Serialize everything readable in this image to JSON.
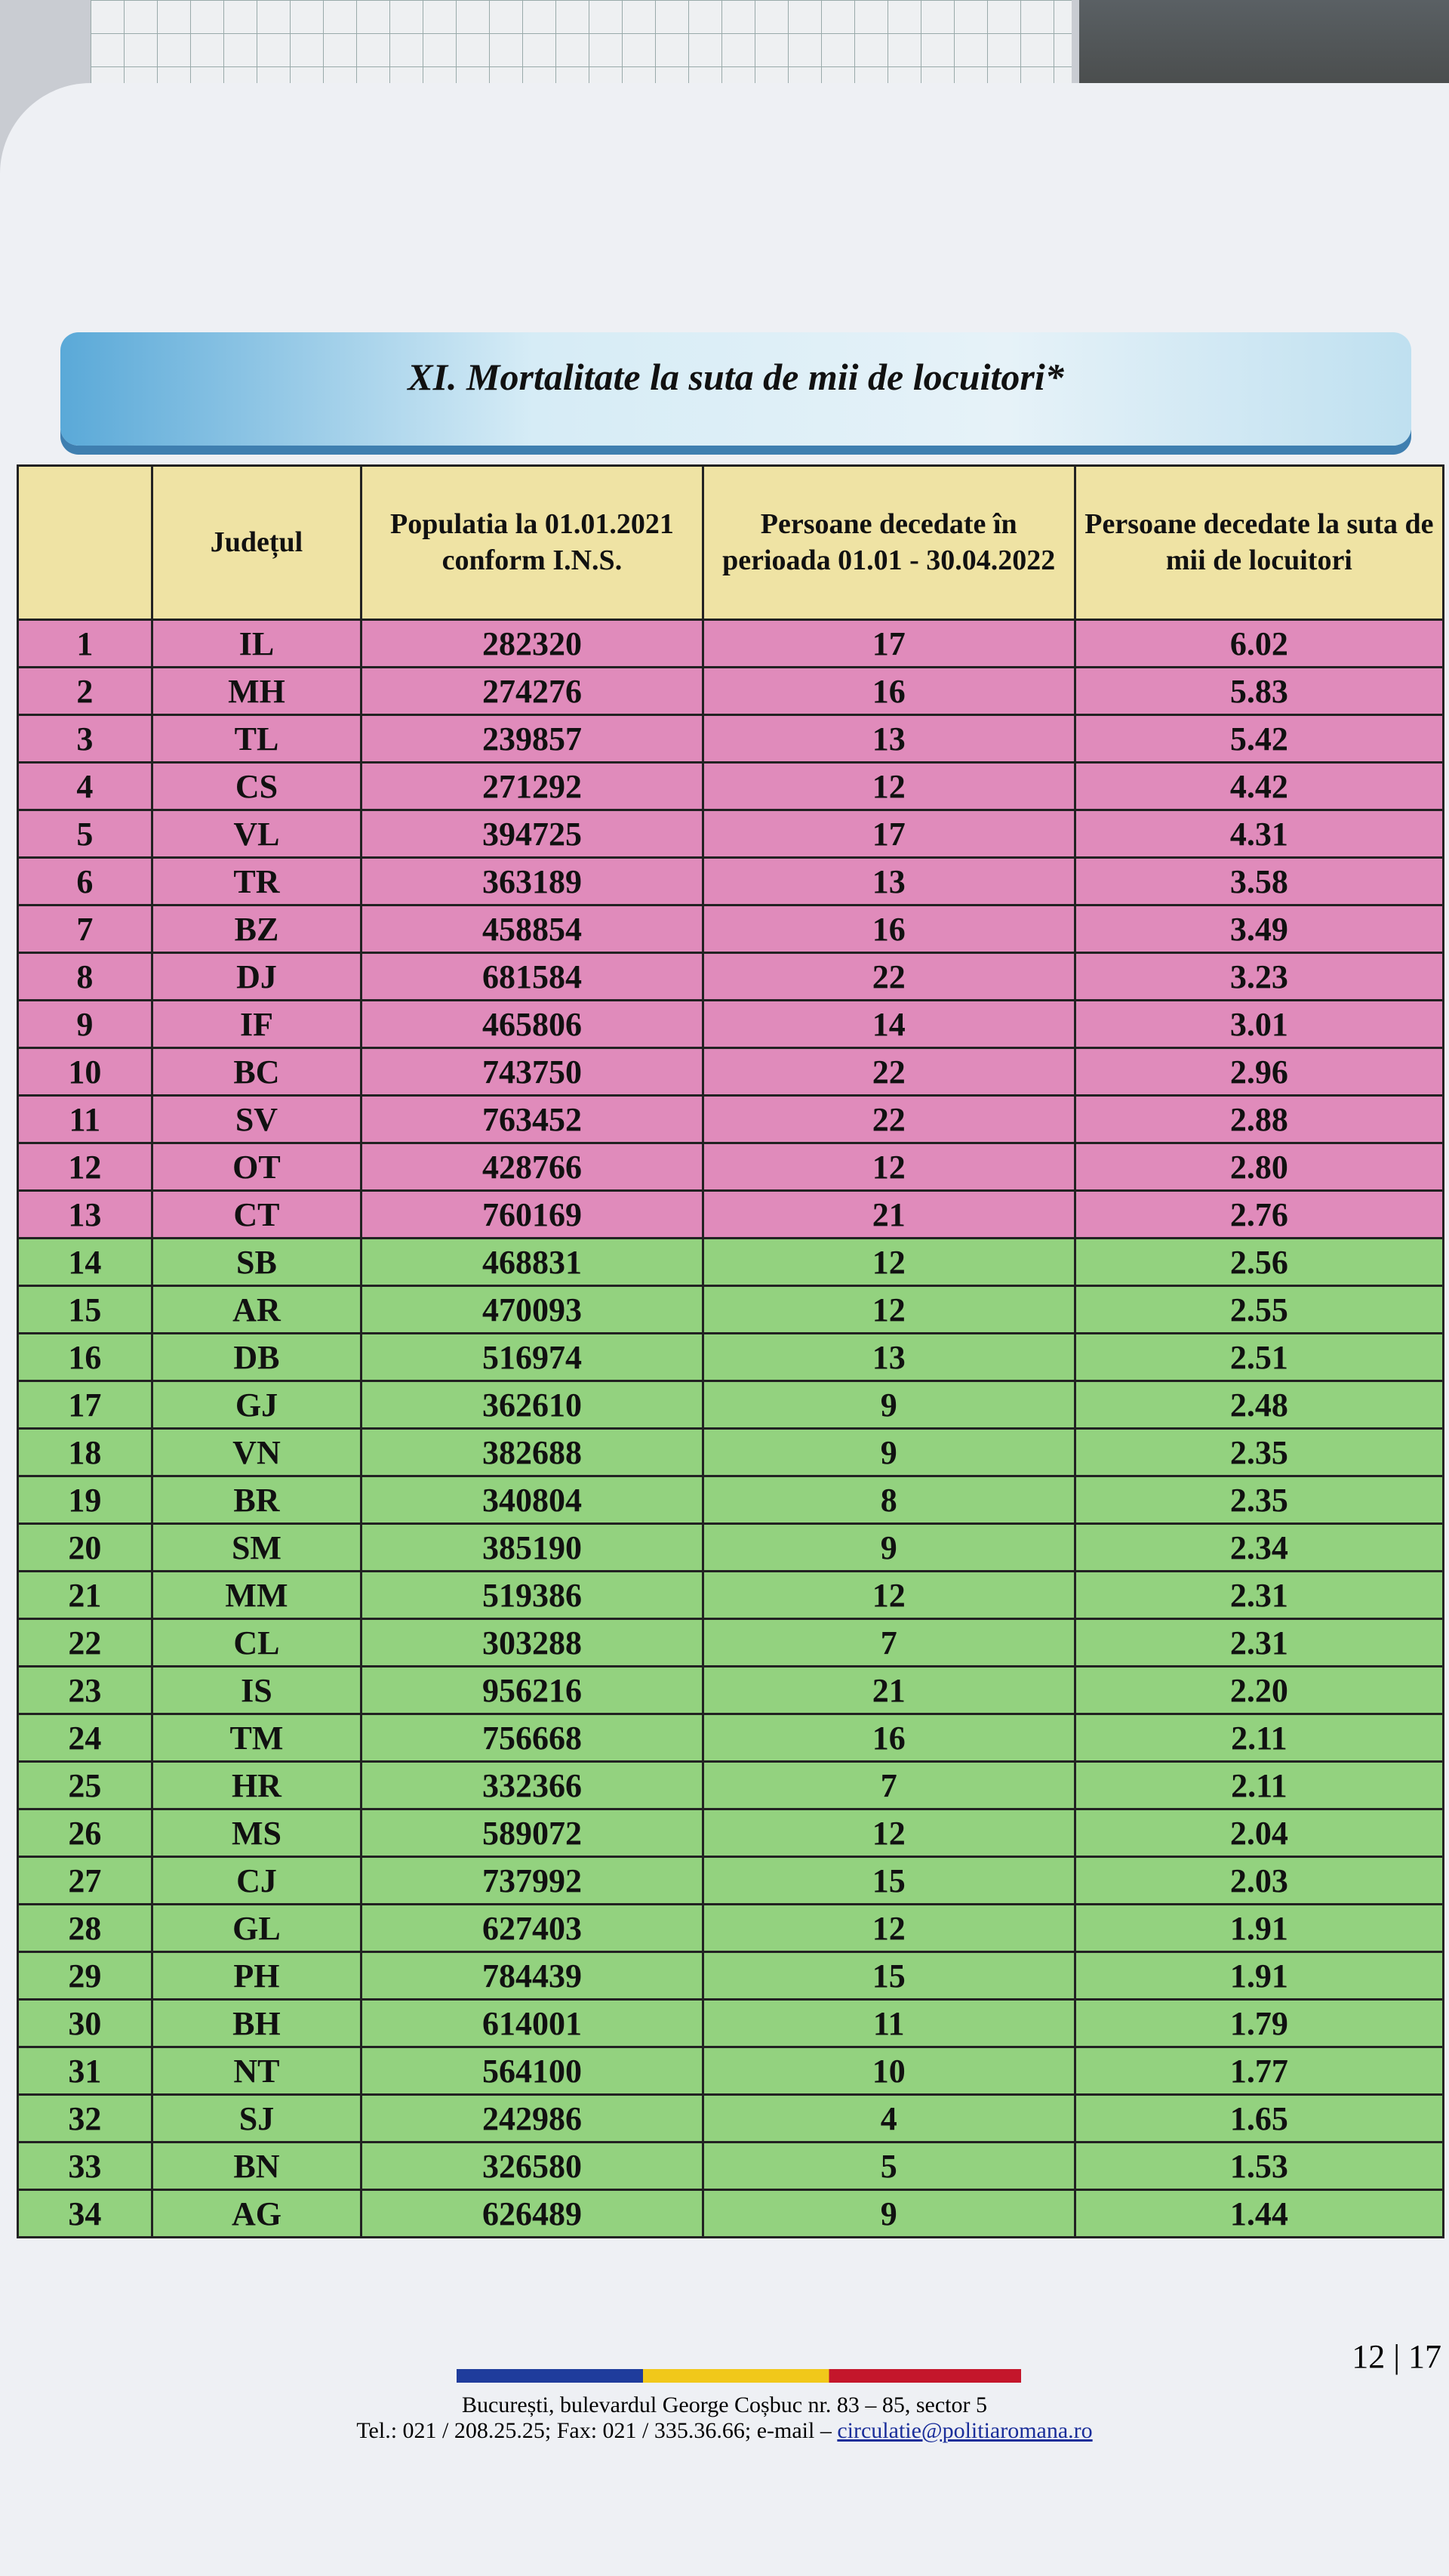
{
  "page": {
    "title": "XI. Mortalitate la suta de mii de locuitori*",
    "table": {
      "headers": [
        "Județul",
        "Populatia la 01.01.2021 conform I.N.S.",
        "Persoane decedate în perioada 01.01 - 30.04.2022",
        "Persoane decedate la suta de mii de locuitori"
      ],
      "groups": [
        {
          "color": "#e08bbb",
          "rows": [
            [
              "1",
              "IL",
              "282320",
              "17",
              "6.02"
            ],
            [
              "2",
              "MH",
              "274276",
              "16",
              "5.83"
            ],
            [
              "3",
              "TL",
              "239857",
              "13",
              "5.42"
            ],
            [
              "4",
              "CS",
              "271292",
              "12",
              "4.42"
            ],
            [
              "5",
              "VL",
              "394725",
              "17",
              "4.31"
            ],
            [
              "6",
              "TR",
              "363189",
              "13",
              "3.58"
            ],
            [
              "7",
              "BZ",
              "458854",
              "16",
              "3.49"
            ],
            [
              "8",
              "DJ",
              "681584",
              "22",
              "3.23"
            ],
            [
              "9",
              "IF",
              "465806",
              "14",
              "3.01"
            ],
            [
              "10",
              "BC",
              "743750",
              "22",
              "2.96"
            ],
            [
              "11",
              "SV",
              "763452",
              "22",
              "2.88"
            ],
            [
              "12",
              "OT",
              "428766",
              "12",
              "2.80"
            ],
            [
              "13",
              "CT",
              "760169",
              "21",
              "2.76"
            ]
          ]
        },
        {
          "color": "#93d27f",
          "rows": [
            [
              "14",
              "SB",
              "468831",
              "12",
              "2.56"
            ],
            [
              "15",
              "AR",
              "470093",
              "12",
              "2.55"
            ],
            [
              "16",
              "DB",
              "516974",
              "13",
              "2.51"
            ],
            [
              "17",
              "GJ",
              "362610",
              "9",
              "2.48"
            ],
            [
              "18",
              "VN",
              "382688",
              "9",
              "2.35"
            ],
            [
              "19",
              "BR",
              "340804",
              "8",
              "2.35"
            ],
            [
              "20",
              "SM",
              "385190",
              "9",
              "2.34"
            ],
            [
              "21",
              "MM",
              "519386",
              "12",
              "2.31"
            ],
            [
              "22",
              "CL",
              "303288",
              "7",
              "2.31"
            ],
            [
              "23",
              "IS",
              "956216",
              "21",
              "2.20"
            ],
            [
              "24",
              "TM",
              "756668",
              "16",
              "2.11"
            ],
            [
              "25",
              "HR",
              "332366",
              "7",
              "2.11"
            ],
            [
              "26",
              "MS",
              "589072",
              "12",
              "2.04"
            ],
            [
              "27",
              "CJ",
              "737992",
              "15",
              "2.03"
            ],
            [
              "28",
              "GL",
              "627403",
              "12",
              "1.91"
            ],
            [
              "29",
              "PH",
              "784439",
              "15",
              "1.91"
            ],
            [
              "30",
              "BH",
              "614001",
              "11",
              "1.79"
            ],
            [
              "31",
              "NT",
              "564100",
              "10",
              "1.77"
            ],
            [
              "32",
              "SJ",
              "242986",
              "4",
              "1.65"
            ],
            [
              "33",
              "BN",
              "326580",
              "5",
              "1.53"
            ],
            [
              "34",
              "AG",
              "626489",
              "9",
              "1.44"
            ]
          ]
        }
      ]
    },
    "footer": {
      "page_number": "12 | 17",
      "address": "București, bulevardul George Coșbuc nr. 83 – 85, sector 5",
      "contact": "Tel.: 021 / 208.25.25; Fax: 021 / 335.36.66; e-mail – ",
      "email": "circulatie@politiaromana.ro"
    }
  }
}
